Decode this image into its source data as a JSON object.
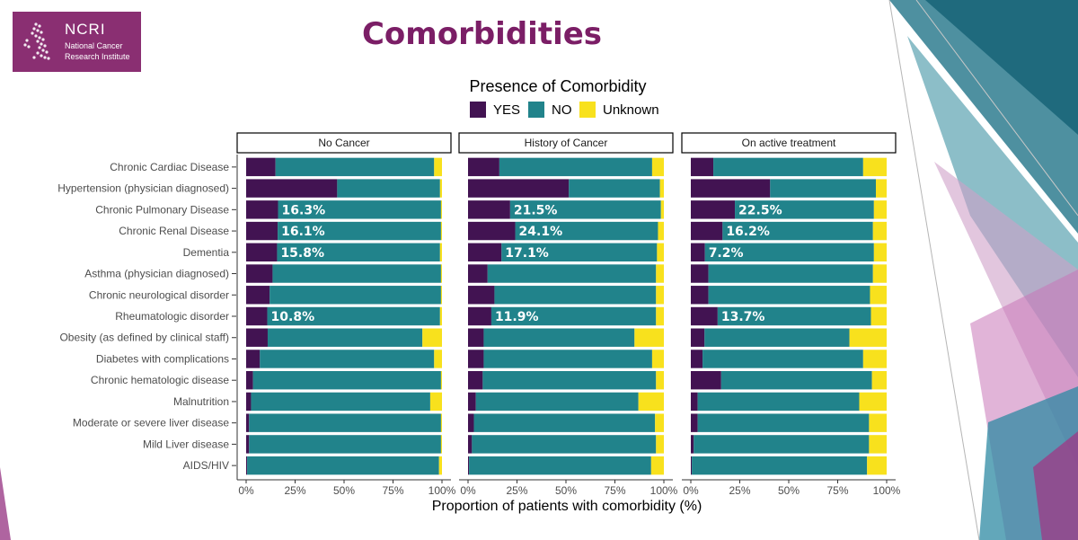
{
  "slide": {
    "title": "Comorbidities",
    "logo": {
      "brand": "NCRI",
      "subtitle_lines": [
        "National Cancer",
        "Research Institute"
      ]
    }
  },
  "colors": {
    "yes": "#421352",
    "no": "#21838b",
    "unknown": "#f8e11d",
    "label": "#ffffff",
    "brand": "#8a2f72",
    "title": "#7b1e66"
  },
  "chart_data": {
    "type": "bar",
    "orientation": "horizontal",
    "stacked": true,
    "legend_title": "Presence of Comorbidity",
    "legend_position": "top",
    "xlabel": "Proportion of patients with comorbidity (%)",
    "xlim": [
      0,
      100
    ],
    "x_ticks": [
      "0%",
      "25%",
      "50%",
      "75%",
      "100%"
    ],
    "series_names": [
      "YES",
      "NO",
      "Unknown"
    ],
    "categories": [
      "Chronic Cardiac Disease",
      "Hypertension (physician diagnosed)",
      "Chronic Pulmonary Disease",
      "Chronic Renal Disease",
      "Dementia",
      "Asthma (physician diagnosed)",
      "Chronic neurological disorder",
      "Rheumatologic disorder",
      "Obesity (as defined by clinical staff)",
      "Diabetes with complications",
      "Chronic hematologic disease",
      "Malnutrition",
      "Moderate or severe liver disease",
      "Mild Liver disease",
      "AIDS/HIV"
    ],
    "panels": [
      {
        "name": "No Cancer",
        "yes": [
          15,
          46.5,
          16.3,
          16.1,
          15.8,
          13.5,
          12,
          10.8,
          11,
          7,
          3.5,
          2.5,
          1.5,
          1.5,
          0.5
        ],
        "unknown": [
          4,
          1,
          0.5,
          0.5,
          1,
          0.5,
          0.5,
          1,
          10,
          4,
          0.5,
          6,
          0.5,
          0.5,
          1.5
        ],
        "labels": [
          "",
          "",
          "16.3%",
          "16.1%",
          "15.8%",
          "",
          "",
          "10.8%",
          "",
          "",
          "",
          "",
          "",
          "",
          ""
        ]
      },
      {
        "name": "History of Cancer",
        "yes": [
          16,
          51.5,
          21.5,
          24.1,
          17.1,
          10,
          13.5,
          11.9,
          8,
          8,
          7.5,
          4,
          3,
          2,
          0.5
        ],
        "unknown": [
          6,
          2,
          1.5,
          3,
          3.5,
          4,
          4,
          4,
          15,
          6,
          4,
          13,
          4.5,
          4,
          6.5
        ],
        "labels": [
          "",
          "",
          "21.5%",
          "24.1%",
          "17.1%",
          "",
          "",
          "11.9%",
          "",
          "",
          "",
          "",
          "",
          "",
          ""
        ]
      },
      {
        "name": "On active treatment",
        "yes": [
          11.5,
          40.5,
          22.5,
          16.2,
          7.2,
          9,
          9,
          13.7,
          7,
          6,
          15.5,
          3.5,
          3.5,
          1.5,
          0.5
        ],
        "unknown": [
          12,
          5.5,
          6.5,
          7,
          6.5,
          7,
          8.5,
          8,
          19,
          12,
          7.5,
          14,
          9,
          9,
          10
        ],
        "labels": [
          "",
          "",
          "22.5%",
          "16.2%",
          "7.2%",
          "",
          "",
          "13.7%",
          "",
          "",
          "",
          "",
          "",
          "",
          ""
        ]
      }
    ]
  }
}
